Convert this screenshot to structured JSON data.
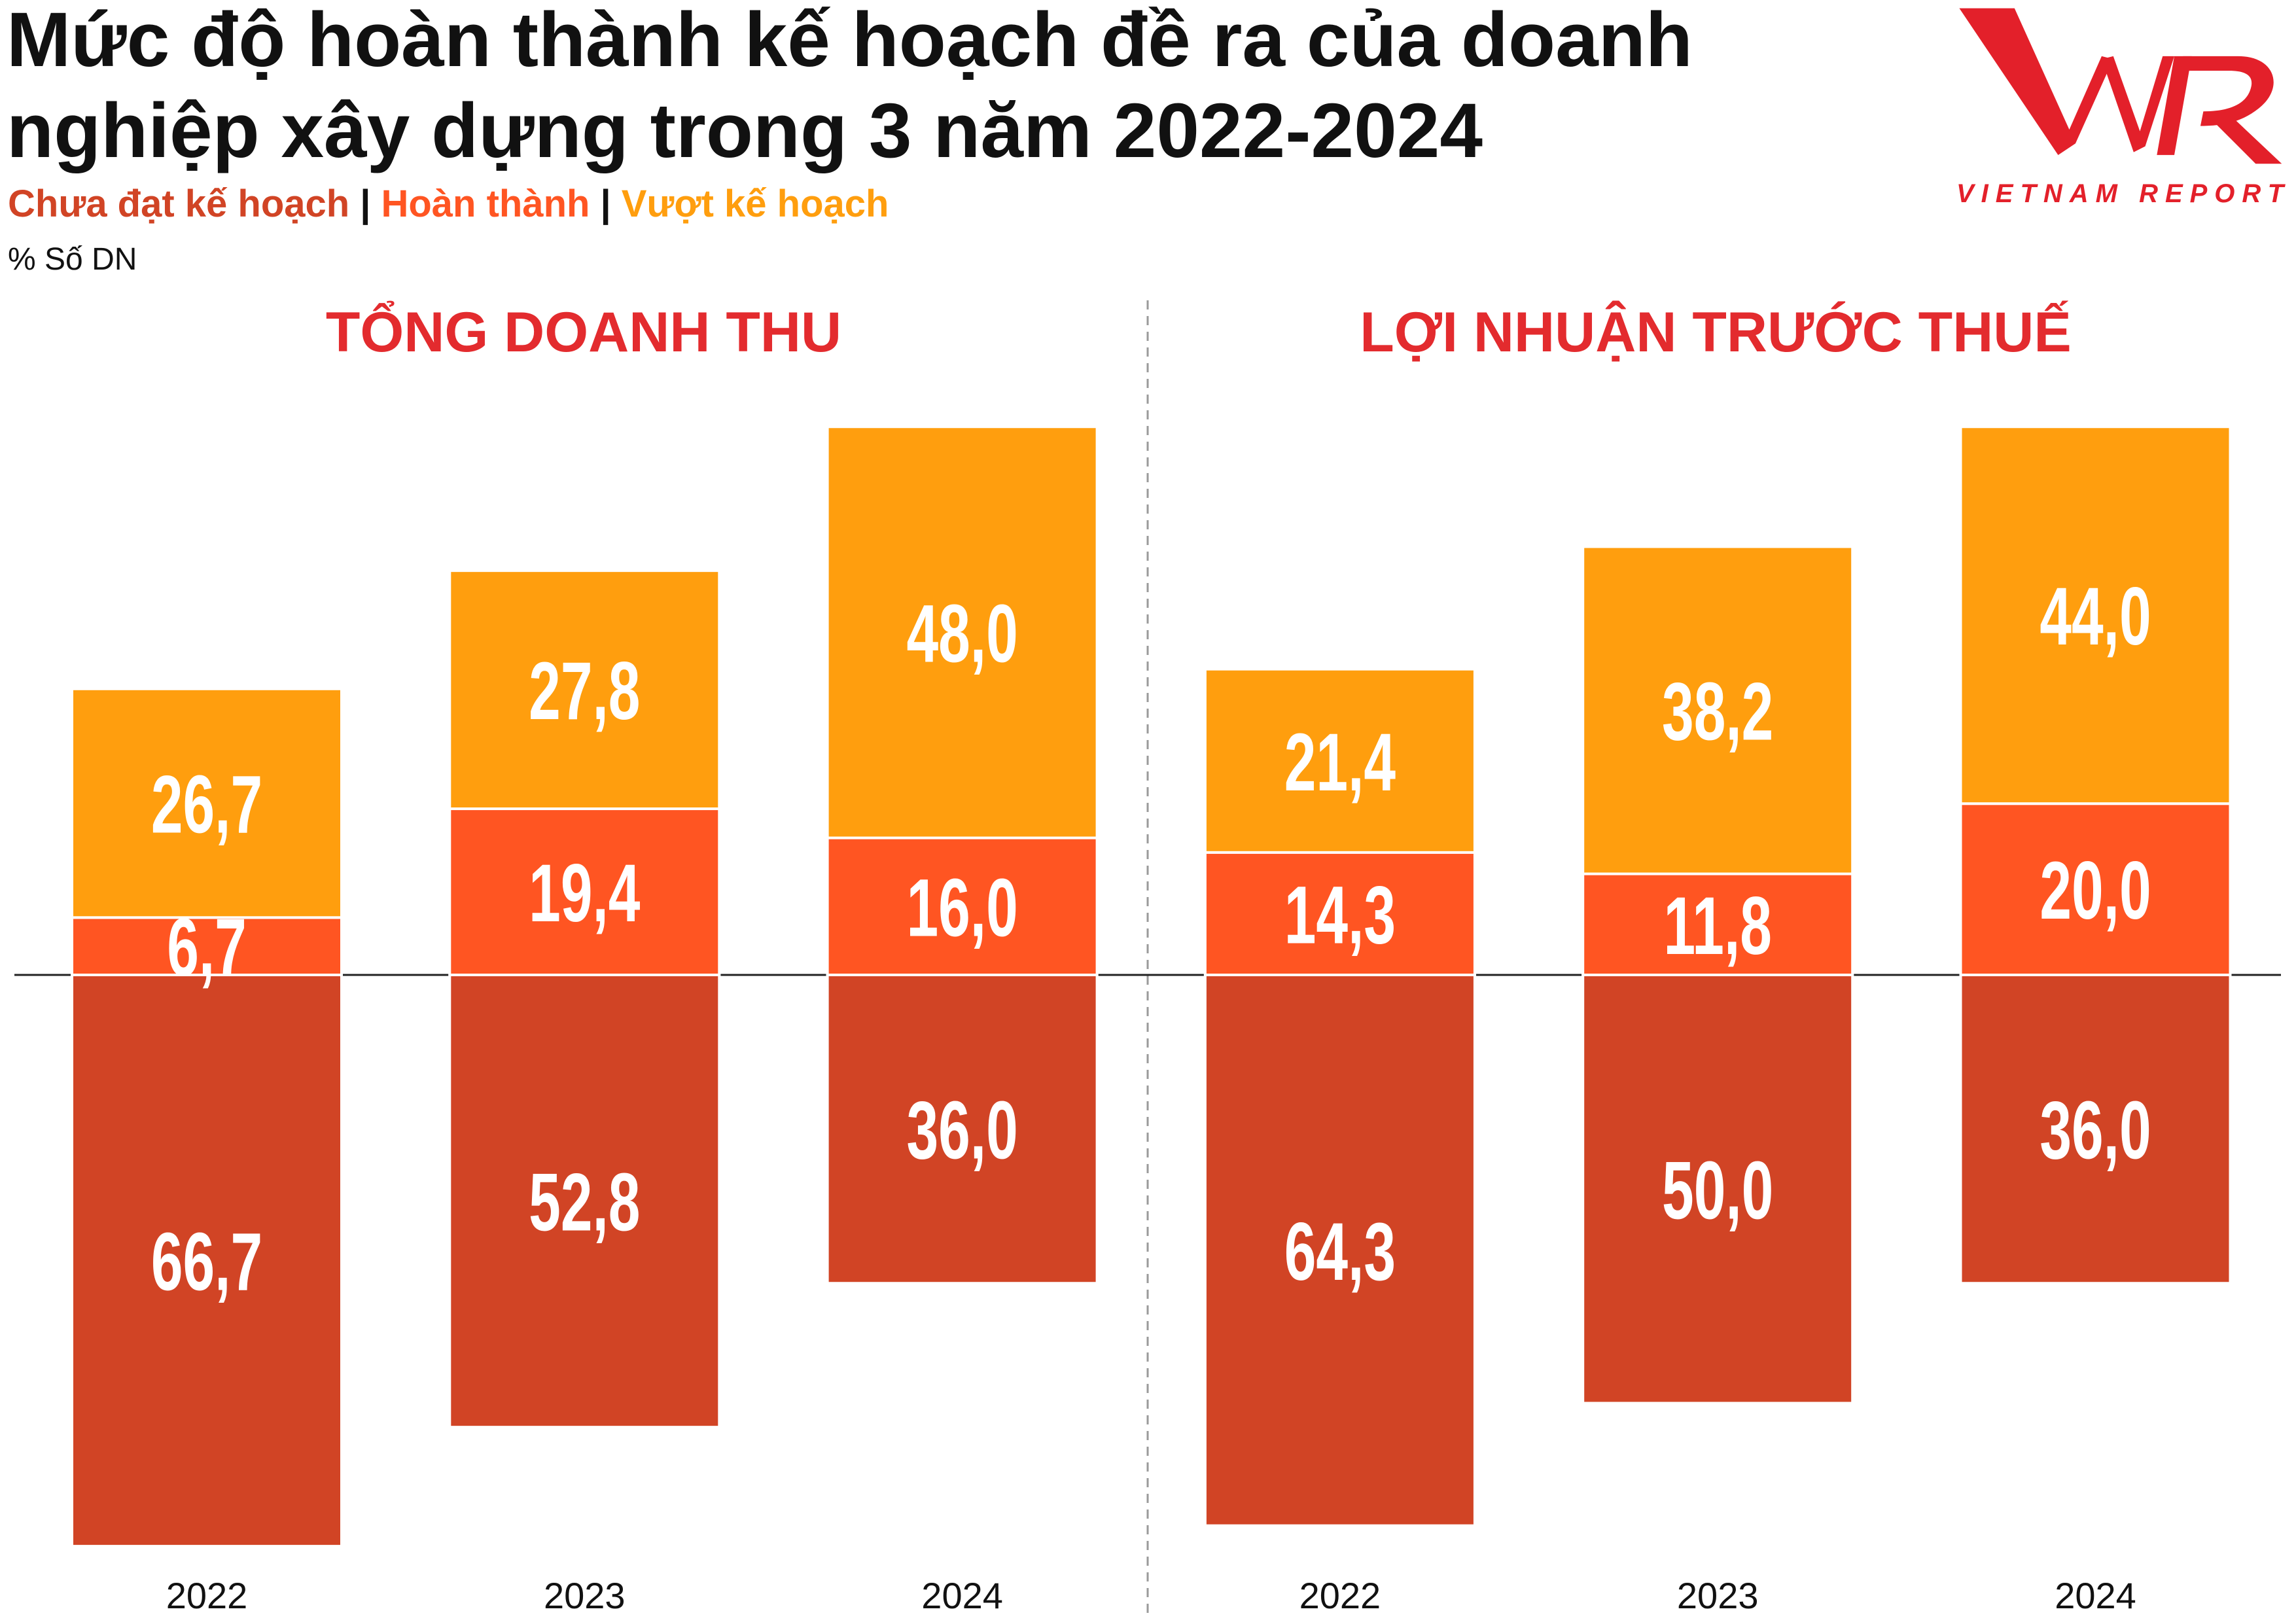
{
  "header": {
    "title_lines": [
      "Mức độ hoàn thành kế hoạch đề ra của doanh",
      "nghiệp xây dựng trong 3 năm 2022-2024"
    ],
    "legend_separator": "|",
    "unit_label": "% Số DN"
  },
  "logo": {
    "icon": "vnr-logo-icon",
    "text": "VIETNAM REPORT"
  },
  "colors": {
    "title": "#111111",
    "section_title": "#E32B2E",
    "logo": "#E3202A"
  },
  "chart_data": [
    {
      "type": "bar",
      "stacked": true,
      "diverging": true,
      "title": "TỔNG DOANH THU",
      "categories": [
        "2022",
        "2023",
        "2024"
      ],
      "series": [
        {
          "name": "Chưa đạt kế hoạch",
          "color": "#D14425",
          "side": "below",
          "values": [
            66.7,
            52.8,
            36.0
          ]
        },
        {
          "name": "Hoàn thành",
          "color": "#FF5522",
          "side": "above",
          "values": [
            6.7,
            19.4,
            16.0
          ]
        },
        {
          "name": "Vượt kế hoạch",
          "color": "#FF9E0E",
          "side": "above",
          "values": [
            26.7,
            27.8,
            48.0
          ]
        }
      ],
      "data_labels": true,
      "grid": false,
      "legend": "top-left"
    },
    {
      "type": "bar",
      "stacked": true,
      "diverging": true,
      "title": "LỢI NHUẬN TRƯỚC THUẾ",
      "categories": [
        "2022",
        "2023",
        "2024"
      ],
      "series": [
        {
          "name": "Chưa đạt kế hoạch",
          "color": "#D14425",
          "side": "below",
          "values": [
            64.3,
            50.0,
            36.0
          ]
        },
        {
          "name": "Hoàn thành",
          "color": "#FF5522",
          "side": "above",
          "values": [
            14.3,
            11.8,
            20.0
          ]
        },
        {
          "name": "Vượt kế hoạch",
          "color": "#FF9E0E",
          "side": "above",
          "values": [
            21.4,
            38.2,
            44.0
          ]
        }
      ],
      "data_labels": true,
      "grid": false,
      "legend": "top-left"
    }
  ]
}
